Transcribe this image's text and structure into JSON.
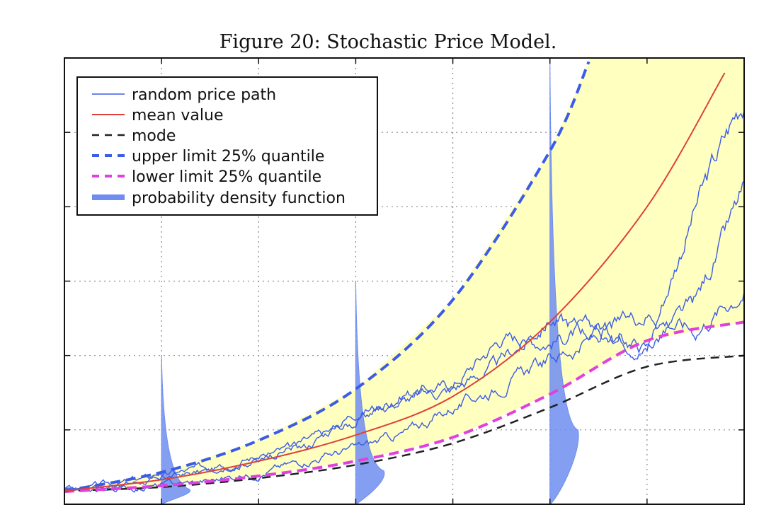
{
  "figure": {
    "title": "Figure 20: Stochastic Price Model."
  },
  "legend": [
    {
      "label": "random price path",
      "style": "thin-solid",
      "color": "#3b5ce6"
    },
    {
      "label": "mean value",
      "style": "solid",
      "color": "#e0403a"
    },
    {
      "label": "mode",
      "style": "dashed",
      "color": "#222222"
    },
    {
      "label": "upper limit 25% quantile",
      "style": "dashed",
      "color": "#3b5ce6"
    },
    {
      "label": "lower limit 25% quantile",
      "style": "dashed",
      "color": "#e040e0"
    },
    {
      "label": "probability density function",
      "style": "band",
      "color": "#6f8df0"
    }
  ],
  "colors": {
    "band_fill": "#ffffc0",
    "path": "#3b5ce6",
    "mean": "#e0403a",
    "mode": "#222222",
    "upper": "#3b5ce6",
    "lower": "#e040e0",
    "pdf": "#6f8df0"
  },
  "chart_data": {
    "type": "line",
    "title": "",
    "xlabel": "",
    "ylabel": "",
    "xlim": [
      0,
      7
    ],
    "ylim": [
      0,
      6
    ],
    "grid": true,
    "x_gridlines": [
      1,
      2,
      3,
      4,
      5,
      6
    ],
    "y_gridlines": [
      1,
      2,
      3,
      4,
      5
    ],
    "legend_position": "top-left",
    "series": [
      {
        "name": "mean value",
        "x": [
          0,
          1,
          2,
          3,
          4,
          5,
          6,
          6.8
        ],
        "y": [
          0.18,
          0.33,
          0.58,
          0.93,
          1.45,
          2.45,
          4.0,
          5.8
        ]
      },
      {
        "name": "mode",
        "x": [
          0,
          1,
          2,
          3,
          4,
          5,
          6,
          7
        ],
        "y": [
          0.18,
          0.23,
          0.35,
          0.53,
          0.82,
          1.3,
          1.85,
          2.0
        ]
      },
      {
        "name": "upper limit 25% quantile",
        "x": [
          0,
          1,
          2,
          3,
          4,
          5,
          5.4
        ],
        "y": [
          0.18,
          0.43,
          0.86,
          1.55,
          2.75,
          4.75,
          5.95
        ]
      },
      {
        "name": "lower limit 25% quantile",
        "x": [
          0,
          1,
          2,
          3,
          4,
          5,
          6,
          7
        ],
        "y": [
          0.17,
          0.25,
          0.38,
          0.58,
          0.9,
          1.48,
          2.2,
          2.45
        ]
      }
    ],
    "random_price_paths": [
      {
        "x": [
          0,
          0.5,
          1,
          1.5,
          2,
          2.5,
          3,
          3.5,
          4,
          4.5,
          5,
          5.5,
          6,
          6.5,
          7
        ],
        "y": [
          0.18,
          0.25,
          0.35,
          0.45,
          0.62,
          0.85,
          1.1,
          1.5,
          1.6,
          2.25,
          2.2,
          2.4,
          2.1,
          4.0,
          5.5
        ]
      },
      {
        "x": [
          0,
          0.5,
          1,
          1.5,
          2,
          2.5,
          3,
          3.5,
          4,
          4.5,
          5,
          5.5,
          6,
          6.5,
          7
        ],
        "y": [
          0.18,
          0.27,
          0.38,
          0.5,
          0.65,
          0.78,
          1.25,
          1.4,
          1.55,
          1.9,
          2.5,
          2.3,
          2.1,
          2.7,
          4.2
        ]
      },
      {
        "x": [
          0,
          0.5,
          1,
          1.5,
          2,
          2.5,
          3,
          3.5,
          4,
          4.5,
          5,
          5.5,
          6,
          6.5,
          7
        ],
        "y": [
          0.18,
          0.2,
          0.25,
          0.32,
          0.42,
          0.6,
          0.75,
          0.95,
          1.3,
          1.6,
          1.95,
          2.25,
          2.6,
          2.35,
          2.9
        ]
      }
    ],
    "pdfs": [
      {
        "x": 1,
        "mode_y": 0.2,
        "y_max": 2.0
      },
      {
        "x": 3,
        "mode_y": 0.45,
        "y_max": 3.0
      },
      {
        "x": 5,
        "mode_y": 1.0,
        "y_max": 6.0
      }
    ]
  }
}
